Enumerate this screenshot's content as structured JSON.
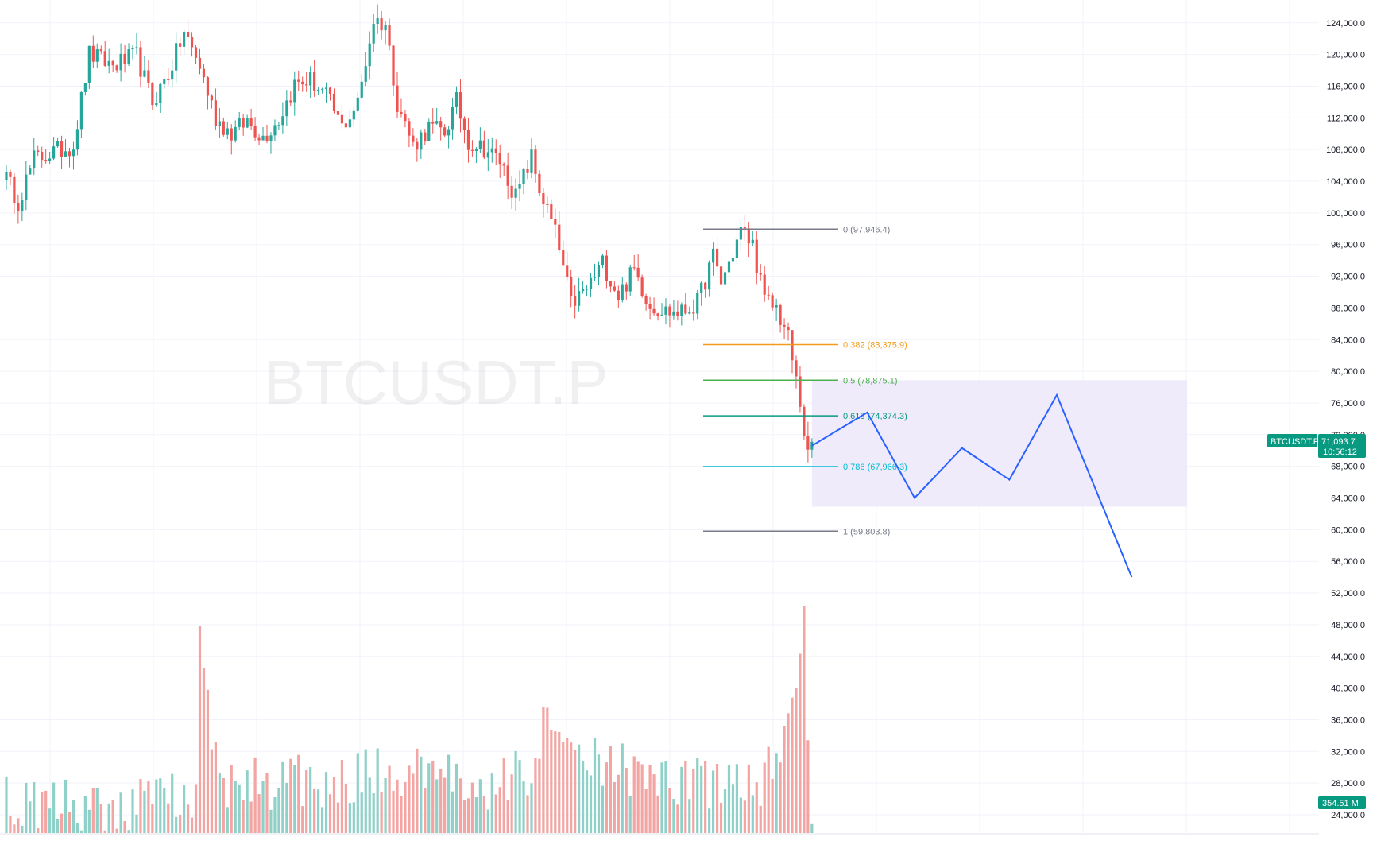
{
  "chart_data": {
    "type": "candlestick",
    "symbol_watermark": "BTCUSDT.P",
    "y_axis": {
      "ylim": [
        21500,
        127000
      ],
      "ticks": [
        "124,000.0",
        "120,000.0",
        "116,000.0",
        "112,000.0",
        "108,000.0",
        "104,000.0",
        "100,000.0",
        "96,000.0",
        "92,000.0",
        "88,000.0",
        "84,000.0",
        "80,000.0",
        "76,000.0",
        "72,000.0",
        "68,000.0",
        "64,000.0",
        "60,000.0",
        "56,000.0",
        "52,000.0",
        "48,000.0",
        "44,000.0",
        "40,000.0",
        "36,000.0",
        "32,000.0",
        "28,000.0",
        "24,000.0"
      ],
      "tick_values": [
        124000,
        120000,
        116000,
        112000,
        108000,
        104000,
        100000,
        96000,
        92000,
        88000,
        84000,
        80000,
        76000,
        72000,
        68000,
        64000,
        60000,
        56000,
        52000,
        48000,
        44000,
        40000,
        36000,
        32000,
        28000,
        24000
      ]
    },
    "x_axis": {
      "gridlines": 13
    },
    "colors": {
      "up": "#26a69a",
      "down": "#ef5350",
      "vol_up": "#8fd1c8",
      "vol_down": "#f2a5a3",
      "grid": "#f0f3fa",
      "projection": "#2962ff",
      "zone": "#ede9fb"
    },
    "candle_count": 205,
    "anchor_closes": [
      [
        0,
        105200
      ],
      [
        4,
        101500
      ],
      [
        8,
        106800
      ],
      [
        14,
        107800
      ],
      [
        18,
        108600
      ],
      [
        22,
        120000
      ],
      [
        28,
        118600
      ],
      [
        34,
        119800
      ],
      [
        38,
        114000
      ],
      [
        42,
        117500
      ],
      [
        46,
        122800
      ],
      [
        50,
        118500
      ],
      [
        54,
        112000
      ],
      [
        58,
        110000
      ],
      [
        62,
        111600
      ],
      [
        66,
        109600
      ],
      [
        70,
        111800
      ],
      [
        74,
        116200
      ],
      [
        78,
        116800
      ],
      [
        82,
        114800
      ],
      [
        86,
        110800
      ],
      [
        90,
        113800
      ],
      [
        94,
        124400
      ],
      [
        97,
        123800
      ],
      [
        100,
        114000
      ],
      [
        104,
        108500
      ],
      [
        108,
        110800
      ],
      [
        112,
        110200
      ],
      [
        115,
        114000
      ],
      [
        118,
        109000
      ],
      [
        122,
        108200
      ],
      [
        126,
        106600
      ],
      [
        130,
        102000
      ],
      [
        134,
        107000
      ],
      [
        136,
        103000
      ],
      [
        140,
        97500
      ],
      [
        144,
        88500
      ],
      [
        148,
        90400
      ],
      [
        152,
        93700
      ],
      [
        156,
        89600
      ],
      [
        160,
        92800
      ],
      [
        164,
        88400
      ],
      [
        168,
        87600
      ],
      [
        172,
        87400
      ],
      [
        176,
        88600
      ],
      [
        180,
        94500
      ],
      [
        182,
        91200
      ],
      [
        185,
        95000
      ],
      [
        187,
        97900
      ],
      [
        190,
        96000
      ],
      [
        193,
        88900
      ],
      [
        196,
        88000
      ],
      [
        199,
        84200
      ],
      [
        202,
        76000
      ],
      [
        204,
        69000
      ],
      [
        205,
        71094
      ]
    ],
    "volume_anchors": [
      [
        0,
        27000
      ],
      [
        20,
        26000
      ],
      [
        40,
        26500
      ],
      [
        49,
        27800
      ],
      [
        50,
        46000
      ],
      [
        55,
        28500
      ],
      [
        60,
        28500
      ],
      [
        80,
        29000
      ],
      [
        99,
        30000
      ],
      [
        110,
        29500
      ],
      [
        120,
        28500
      ],
      [
        136,
        30500
      ],
      [
        137,
        34500
      ],
      [
        145,
        33500
      ],
      [
        160,
        29500
      ],
      [
        180,
        29000
      ],
      [
        190,
        28500
      ],
      [
        195,
        30500
      ],
      [
        200,
        36500
      ],
      [
        203,
        48000
      ],
      [
        205,
        25000
      ]
    ],
    "fibonacci": [
      {
        "label": "0 (97,946.4)",
        "value": 97946.4,
        "color": "#787b86"
      },
      {
        "label": "0.382 (83,375.9)",
        "value": 83375.9,
        "color": "#f59b1b"
      },
      {
        "label": "0.5 (78,875.1)",
        "value": 78875.1,
        "color": "#4caf50"
      },
      {
        "label": "0.618 (74,374.3)",
        "value": 74374.3,
        "color": "#089981"
      },
      {
        "label": "0.786 (67,966.3)",
        "value": 67966.3,
        "color": "#00bcd4"
      },
      {
        "label": "1 (59,803.8)",
        "value": 59803.8,
        "color": "#787b86"
      }
    ],
    "projection_zone": {
      "x_start": 205,
      "x_end": 300,
      "y_top": 78875.1,
      "y_bottom": 62900
    },
    "projection_path": [
      [
        205,
        70600
      ],
      [
        219,
        74800
      ],
      [
        231,
        64000
      ],
      [
        243,
        70300
      ],
      [
        255,
        66300
      ],
      [
        267,
        77000
      ],
      [
        286,
        54000
      ]
    ],
    "last_price": {
      "symbol": "BTCUSDT.P",
      "price": "71,093.7",
      "countdown": "10:56:12",
      "value": 71093.7
    },
    "volume_label": "354.51 M"
  }
}
